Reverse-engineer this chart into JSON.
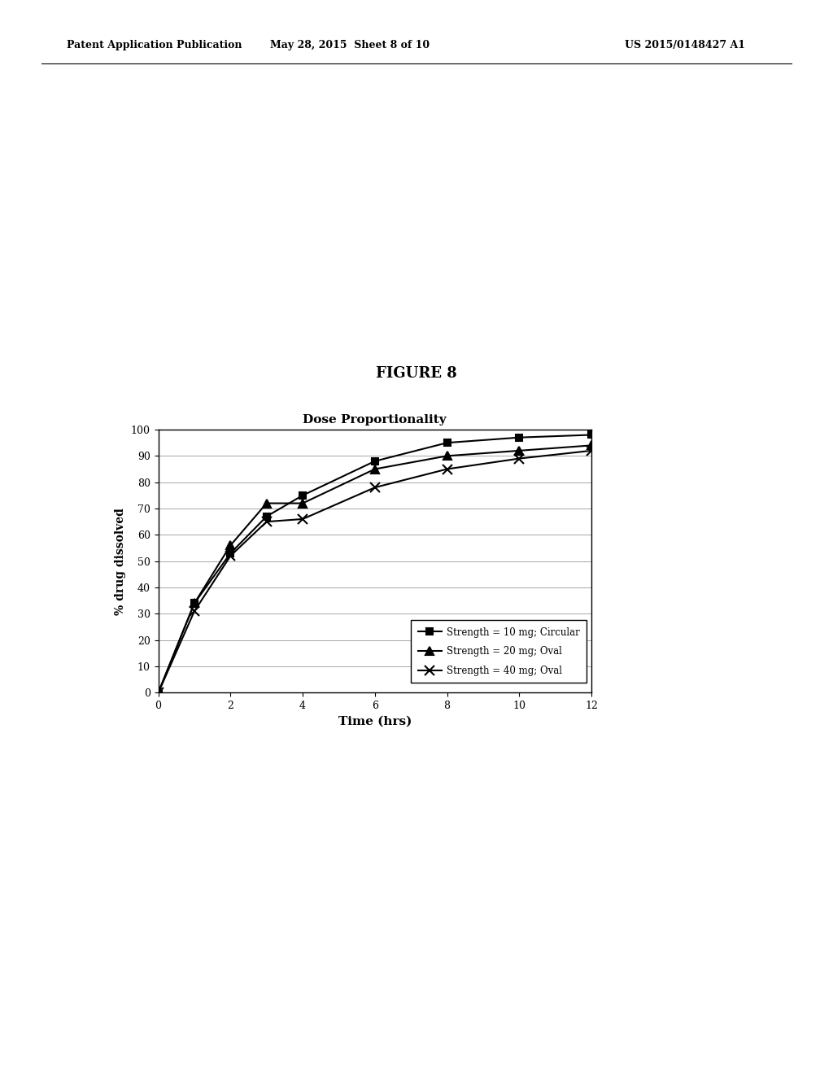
{
  "title": "Dose Proportionality",
  "figure_label": "FIGURE 8",
  "xlabel": "Time (hrs)",
  "ylabel": "% drug dissolved",
  "xlim": [
    0,
    12
  ],
  "ylim": [
    0,
    100
  ],
  "xticks": [
    0,
    2,
    4,
    6,
    8,
    10,
    12
  ],
  "yticks": [
    0,
    10,
    20,
    30,
    40,
    50,
    60,
    70,
    80,
    90,
    100
  ],
  "series": [
    {
      "label": "Strength = 10 mg; Circular",
      "marker": "s",
      "x": [
        0,
        1,
        2,
        3,
        4,
        6,
        8,
        10,
        12
      ],
      "y": [
        0,
        34,
        53,
        67,
        75,
        88,
        95,
        97,
        98
      ]
    },
    {
      "label": "Strength = 20 mg; Oval",
      "marker": "^",
      "x": [
        0,
        1,
        2,
        3,
        4,
        6,
        8,
        10,
        12
      ],
      "y": [
        0,
        34,
        56,
        72,
        72,
        85,
        90,
        92,
        94
      ]
    },
    {
      "label": "Strength = 40 mg; Oval",
      "marker": "x",
      "x": [
        0,
        1,
        2,
        3,
        4,
        6,
        8,
        10,
        12
      ],
      "y": [
        0,
        31,
        52,
        65,
        66,
        78,
        85,
        89,
        92
      ]
    }
  ],
  "line_color": "#000000",
  "background_color": "#ffffff",
  "header_left": "Patent Application Publication",
  "header_center": "May 28, 2015  Sheet 8 of 10",
  "header_right": "US 2015/0148427 A1",
  "markers": [
    "s",
    "^",
    "x"
  ],
  "marker_sizes": [
    6,
    7,
    8
  ]
}
